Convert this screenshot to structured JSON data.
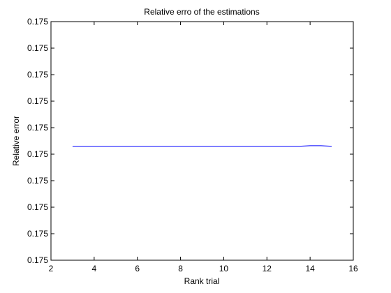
{
  "chart_data": {
    "type": "line",
    "title": "Relative erro of the estimations",
    "xlabel": "Rank trial",
    "ylabel": "Relative error",
    "xlim": [
      2,
      16
    ],
    "x_ticks": [
      2,
      4,
      6,
      8,
      10,
      12,
      14,
      16
    ],
    "ylim": [
      0,
      9
    ],
    "y_tick_positions": [
      0,
      1,
      2,
      3,
      4,
      5,
      6,
      7,
      8,
      9
    ],
    "y_tick_labels": [
      "0.175",
      "0.175",
      "0.175",
      "0.175",
      "0.175",
      "0.175",
      "0.175",
      "0.175",
      "0.175",
      "0.175"
    ],
    "grid": false,
    "series": [
      {
        "color": "#0000ff",
        "x": [
          3,
          4,
          5,
          6,
          7,
          8,
          9,
          10,
          11,
          12,
          13,
          13.5,
          14,
          14.5,
          15
        ],
        "y": [
          4.3,
          4.3,
          4.3,
          4.3,
          4.3,
          4.3,
          4.3,
          4.3,
          4.3,
          4.3,
          4.3,
          4.3,
          4.32,
          4.32,
          4.3
        ]
      }
    ]
  }
}
